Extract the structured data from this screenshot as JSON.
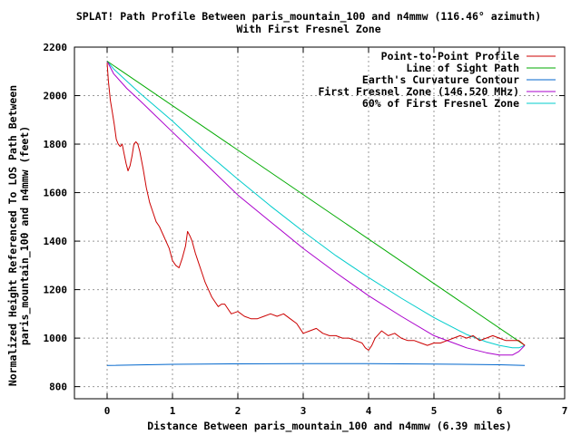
{
  "chart_data": {
    "type": "line",
    "title": "SPLAT! Path Profile Between paris_mountain_100 and n4mmw (116.46° azimuth)",
    "subtitle": "With First Fresnel Zone",
    "xlabel": "Distance Between paris_mountain_100 and n4mmw (6.39 miles)",
    "ylabel_line1": "Normalized Height Referenced To LOS Path Between",
    "ylabel_line2": "paris_mountain_100 and n4mmw (feet)",
    "xlim": [
      -0.5,
      7
    ],
    "ylim": [
      750,
      2200
    ],
    "x_ticks": [
      0,
      1,
      2,
      3,
      4,
      5,
      6,
      7
    ],
    "y_ticks": [
      800,
      1000,
      1200,
      1400,
      1600,
      1800,
      2000,
      2200
    ],
    "grid": true,
    "legend_position": "top-right",
    "colors": {
      "profile": "#cc0000",
      "los": "#00aa00",
      "curvature": "#0066cc",
      "fresnel": "#aa00cc",
      "fresnel60": "#00cccc"
    },
    "series": [
      {
        "name": "Point-to-Point Profile",
        "color": "#cc0000",
        "x": [
          0,
          0.02,
          0.05,
          0.08,
          0.11,
          0.14,
          0.17,
          0.2,
          0.23,
          0.26,
          0.29,
          0.32,
          0.35,
          0.38,
          0.41,
          0.44,
          0.47,
          0.5,
          0.55,
          0.6,
          0.65,
          0.7,
          0.75,
          0.8,
          0.85,
          0.9,
          0.95,
          1.0,
          1.05,
          1.1,
          1.15,
          1.2,
          1.23,
          1.27,
          1.3,
          1.35,
          1.4,
          1.45,
          1.5,
          1.55,
          1.6,
          1.65,
          1.7,
          1.75,
          1.8,
          1.85,
          1.9,
          2.0,
          2.1,
          2.2,
          2.3,
          2.4,
          2.5,
          2.6,
          2.7,
          2.8,
          2.9,
          3.0,
          3.1,
          3.2,
          3.3,
          3.4,
          3.5,
          3.6,
          3.7,
          3.8,
          3.9,
          3.95,
          4.0,
          4.05,
          4.1,
          4.2,
          4.3,
          4.4,
          4.5,
          4.6,
          4.7,
          4.8,
          4.9,
          5.0,
          5.1,
          5.2,
          5.3,
          5.4,
          5.5,
          5.6,
          5.7,
          5.8,
          5.9,
          6.0,
          6.1,
          6.2,
          6.3,
          6.39
        ],
        "values": [
          2135,
          2060,
          1980,
          1930,
          1880,
          1820,
          1800,
          1790,
          1800,
          1760,
          1720,
          1690,
          1710,
          1750,
          1800,
          1810,
          1800,
          1770,
          1700,
          1620,
          1560,
          1520,
          1480,
          1460,
          1430,
          1400,
          1370,
          1320,
          1300,
          1290,
          1330,
          1380,
          1440,
          1420,
          1400,
          1350,
          1310,
          1270,
          1230,
          1200,
          1170,
          1150,
          1130,
          1140,
          1140,
          1120,
          1100,
          1110,
          1090,
          1080,
          1080,
          1090,
          1100,
          1090,
          1100,
          1080,
          1060,
          1020,
          1030,
          1040,
          1020,
          1010,
          1010,
          1000,
          1000,
          990,
          980,
          960,
          950,
          970,
          1000,
          1030,
          1010,
          1020,
          1000,
          990,
          990,
          980,
          970,
          980,
          980,
          990,
          1000,
          1010,
          1000,
          1010,
          990,
          1000,
          1010,
          1000,
          990,
          990,
          990,
          970
        ]
      },
      {
        "name": "Line of Sight Path",
        "color": "#00aa00",
        "x": [
          0,
          6.39
        ],
        "values": [
          2142,
          970
        ]
      },
      {
        "name": "Earth's Curvature Contour",
        "color": "#0066cc",
        "x": [
          0,
          1,
          2,
          3,
          4,
          5,
          6,
          6.39
        ],
        "values": [
          887,
          892,
          894,
          895,
          895,
          893,
          890,
          887
        ]
      },
      {
        "name": "First Fresnel Zone (146.520 MHz)",
        "color": "#aa00cc",
        "x": [
          0,
          0.1,
          0.3,
          0.5,
          1,
          1.5,
          2,
          2.5,
          3,
          3.5,
          4,
          4.5,
          5,
          5.5,
          5.8,
          6.0,
          6.2,
          6.3,
          6.39
        ],
        "values": [
          2142,
          2090,
          2030,
          1980,
          1850,
          1720,
          1590,
          1480,
          1370,
          1270,
          1175,
          1090,
          1010,
          960,
          940,
          930,
          930,
          945,
          970
        ]
      },
      {
        "name": "60% of First Fresnel Zone",
        "color": "#00cccc",
        "x": [
          0,
          0.1,
          0.3,
          0.5,
          1,
          1.5,
          2,
          2.5,
          3,
          3.5,
          4,
          4.5,
          5,
          5.5,
          5.8,
          6.0,
          6.2,
          6.3,
          6.39
        ],
        "values": [
          2142,
          2110,
          2060,
          2010,
          1895,
          1770,
          1655,
          1545,
          1440,
          1340,
          1250,
          1165,
          1085,
          1015,
          985,
          970,
          960,
          960,
          970
        ]
      }
    ],
    "legend": [
      "Point-to-Point Profile",
      "Line of Sight Path",
      "Earth's Curvature Contour",
      "First Fresnel Zone (146.520 MHz)",
      "60% of First Fresnel Zone"
    ]
  }
}
